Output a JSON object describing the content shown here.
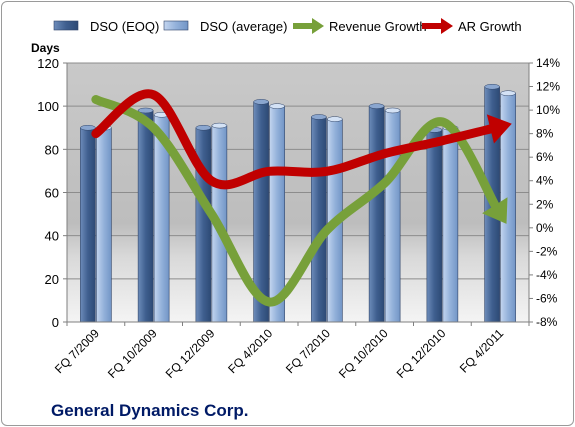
{
  "chart_data": {
    "type": "bar",
    "categories": [
      "FQ 7/2009",
      "FQ 10/2009",
      "FQ 12/2009",
      "FQ 4/2010",
      "FQ 7/2010",
      "FQ 10/2010",
      "FQ 12/2010",
      "FQ 4/2011"
    ],
    "left_axis": {
      "title": "Days",
      "ylim": [
        0,
        120
      ],
      "ticks": [
        "0",
        "20",
        "40",
        "60",
        "80",
        "100",
        "120"
      ]
    },
    "right_axis": {
      "ylim": [
        -8,
        14
      ],
      "ticks": [
        "-8%",
        "-6%",
        "-4%",
        "-2%",
        "0%",
        "2%",
        "4%",
        "6%",
        "8%",
        "10%",
        "12%",
        "14%"
      ]
    },
    "series": [
      {
        "name": "DSO (EOQ)",
        "type": "bar",
        "axis": "left",
        "color": "#4a6c9e",
        "values": [
          90,
          98,
          90,
          102,
          95,
          100,
          89,
          109
        ]
      },
      {
        "name": "DSO (average)",
        "type": "bar",
        "axis": "left",
        "color": "#9cb7dc",
        "values": [
          90,
          96,
          91,
          100,
          94,
          98,
          90,
          106
        ]
      },
      {
        "name": "Revenue Growth",
        "type": "line",
        "axis": "right",
        "color": "#77a03a",
        "values": [
          10.9,
          8.5,
          1.2,
          -6.3,
          -0.2,
          3.8,
          9.0,
          1.2
        ]
      },
      {
        "name": "AR Growth",
        "type": "line",
        "axis": "right",
        "color": "#c00000",
        "values": [
          8.0,
          11.3,
          4.0,
          4.8,
          4.8,
          6.3,
          7.4,
          8.6
        ]
      }
    ],
    "legend": {
      "position": "top"
    },
    "grid": true,
    "footer": "General Dynamics Corp."
  }
}
